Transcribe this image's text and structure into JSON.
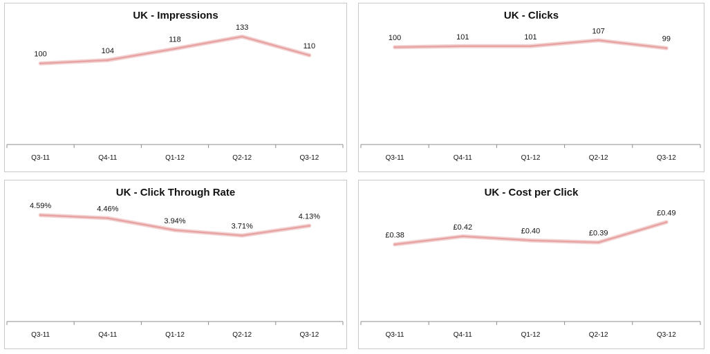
{
  "chart_data": [
    {
      "type": "line",
      "title": "UK - Impressions",
      "categories": [
        "Q3-11",
        "Q4-11",
        "Q1-12",
        "Q2-12",
        "Q3-12"
      ],
      "values": [
        100,
        104,
        118,
        133,
        110
      ],
      "data_labels": [
        "100",
        "104",
        "118",
        "133",
        "110"
      ],
      "ylim": [
        0,
        150
      ],
      "grid": false,
      "line_color": "#e8a3a3"
    },
    {
      "type": "line",
      "title": "UK - Clicks",
      "categories": [
        "Q3-11",
        "Q4-11",
        "Q1-12",
        "Q2-12",
        "Q3-12"
      ],
      "values": [
        100,
        101,
        101,
        107,
        99
      ],
      "data_labels": [
        "100",
        "101",
        "101",
        "107",
        "99"
      ],
      "ylim": [
        0,
        125
      ],
      "grid": false,
      "line_color": "#e8a3a3"
    },
    {
      "type": "line",
      "title": "UK - Click Through Rate",
      "categories": [
        "Q3-11",
        "Q4-11",
        "Q1-12",
        "Q2-12",
        "Q3-12"
      ],
      "values": [
        4.59,
        4.46,
        3.94,
        3.71,
        4.13
      ],
      "data_labels": [
        "4.59%",
        "4.46%",
        "3.94%",
        "3.71%",
        "4.13%"
      ],
      "ylim": [
        0,
        5.25
      ],
      "grid": false,
      "line_color": "#e8a3a3"
    },
    {
      "type": "line",
      "title": "UK - Cost per Click",
      "categories": [
        "Q3-11",
        "Q4-11",
        "Q1-12",
        "Q2-12",
        "Q3-12"
      ],
      "values": [
        0.38,
        0.42,
        0.4,
        0.39,
        0.49
      ],
      "data_labels": [
        "£0.38",
        "£0.42",
        "£0.40",
        "£0.39",
        "£0.49"
      ],
      "ylim": [
        0,
        0.6
      ],
      "grid": false,
      "line_color": "#e8a3a3"
    }
  ]
}
